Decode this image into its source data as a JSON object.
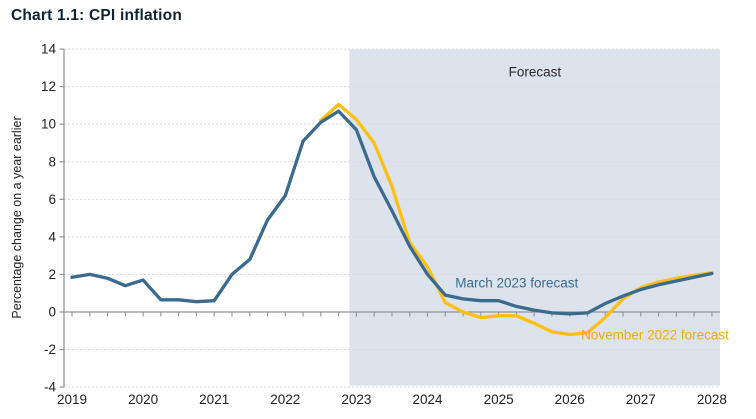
{
  "chart_data": {
    "type": "line",
    "title": "Chart 1.1: CPI inflation",
    "ylabel": "Percentage change on a year earlier",
    "xlabel": "",
    "ylim": [
      -4,
      14
    ],
    "y_ticks": [
      14,
      12,
      10,
      8,
      6,
      4,
      2,
      0,
      -2,
      -4
    ],
    "x_tick_labels": [
      "2019",
      "2020",
      "2021",
      "2022",
      "2023",
      "2024",
      "2025",
      "2026",
      "2027",
      "2028"
    ],
    "x_range": [
      2019,
      2028.1
    ],
    "x_minor_tick_step": 0.25,
    "grid": "faint dotted horizontal lines at every labelled y value",
    "legend_position": "inline labels on lines",
    "forecast_region": {
      "label": "Forecast",
      "x_start": 2022.9,
      "fill": "#dde3ec"
    },
    "axis_color": "#8e9499",
    "series": [
      {
        "name": "November 2022 forecast",
        "color": "#fcbf12",
        "x_start": 2022.5,
        "x_step": 0.25,
        "values": [
          10.2,
          11.05,
          10.25,
          9.0,
          6.7,
          3.7,
          2.4,
          0.5,
          0.0,
          -0.3,
          -0.2,
          -0.2,
          -0.6,
          -1.05,
          -1.2,
          -1.1,
          -0.3,
          0.7,
          1.3,
          1.6,
          1.8,
          1.95,
          2.1
        ]
      },
      {
        "name": "March 2023 forecast",
        "color": "#3a6b8f",
        "x_start": 2019.0,
        "x_step": 0.25,
        "values": [
          1.85,
          2.0,
          1.8,
          1.4,
          1.7,
          0.65,
          0.65,
          0.55,
          0.6,
          2.0,
          2.8,
          4.9,
          6.2,
          9.1,
          10.1,
          10.7,
          9.7,
          7.2,
          5.4,
          3.5,
          2.0,
          0.9,
          0.7,
          0.6,
          0.6,
          0.3,
          0.1,
          -0.05,
          -0.1,
          -0.05,
          0.45,
          0.85,
          1.2,
          1.45,
          1.65,
          1.85,
          2.05
        ]
      }
    ],
    "annotations": [
      {
        "text": "Forecast",
        "x": 2025.51,
        "y": 12.78,
        "color": "#2b2b2b",
        "anchor": "middle"
      },
      {
        "text": "March 2023 forecast",
        "x": 2024.39,
        "y": 1.54,
        "color": "#3a6b8f",
        "anchor": "start"
      },
      {
        "text": "November 2022 forecast",
        "x": 2026.16,
        "y": -1.22,
        "color": "#f0ad00",
        "anchor": "start"
      }
    ]
  }
}
